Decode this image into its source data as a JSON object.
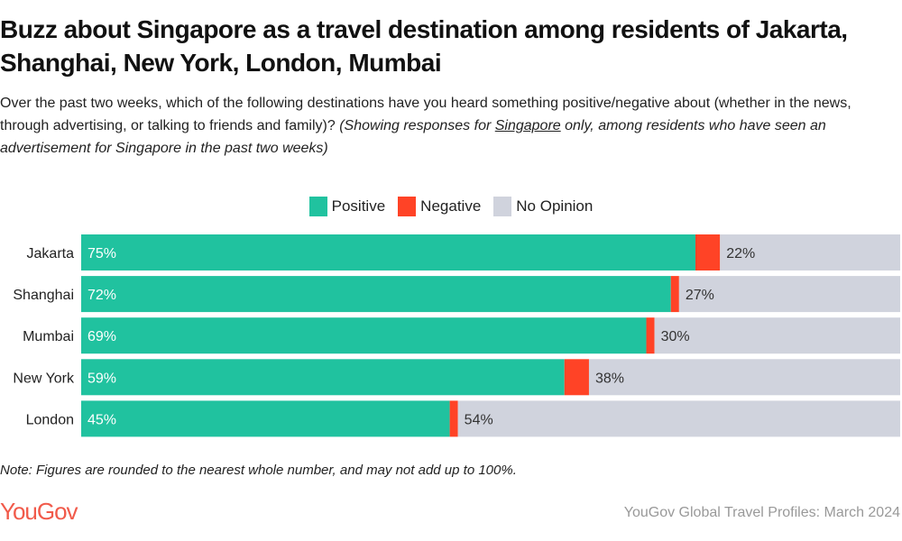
{
  "title": "Buzz about Singapore as a travel destination among residents of Jakarta, Shanghai, New York, London, Mumbai",
  "subtitle": {
    "question": "Over the past two weeks, which of the following destinations have you heard something positive/negative about (whether in the news, through advertising, or talking to friends and family)?",
    "note_prefix": "(Showing responses for ",
    "note_underlined": "Singapore",
    "note_suffix": " only, among residents who have seen an advertisement for Singapore in the past two weeks)"
  },
  "note": "Note: Figures are rounded to the nearest whole number, and may not add up to 100%.",
  "logo": "YouGov",
  "source": "YouGov Global Travel Profiles: March 2024",
  "colors": {
    "positive": "#20c29f",
    "negative": "#ff4326",
    "no_opinion": "#d0d3dd"
  },
  "chart_data": {
    "type": "bar",
    "orientation": "horizontal",
    "stacked": true,
    "categories": [
      "Jakarta",
      "Shanghai",
      "Mumbai",
      "New York",
      "London"
    ],
    "series": [
      {
        "name": "Positive",
        "values": [
          75,
          72,
          69,
          59,
          45
        ]
      },
      {
        "name": "Negative",
        "values": [
          3,
          1,
          1,
          3,
          1
        ]
      },
      {
        "name": "No Opinion",
        "values": [
          22,
          27,
          30,
          38,
          54
        ]
      }
    ],
    "labeled_series": [
      "Positive",
      "No Opinion"
    ],
    "xlim": [
      0,
      100
    ],
    "unit": "%",
    "legend": "top-center",
    "grid": false
  }
}
